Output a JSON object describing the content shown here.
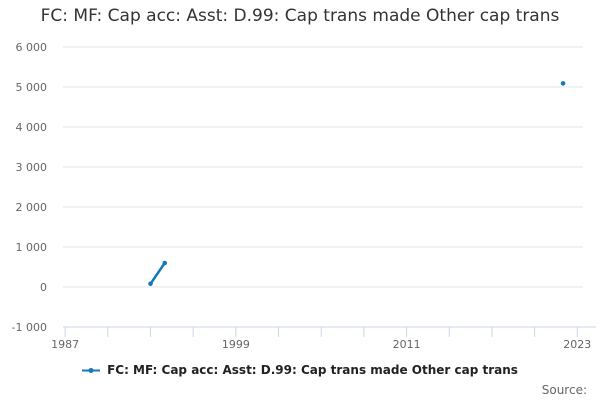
{
  "title": "FC: MF: Cap acc: Asst: D.99: Cap trans made Other cap trans",
  "legend": {
    "label": "FC: MF: Cap acc: Asst: D.99: Cap trans made Other cap trans"
  },
  "footer": {
    "source_label": "Source:"
  },
  "colors": {
    "series": "#1379be",
    "grid": "#e6e6e6",
    "axis": "#ccd6eb",
    "tick_label": "#666666",
    "title": "#333333",
    "legend_text": "#222222",
    "source_text": "#666666"
  },
  "chart_data": {
    "type": "line",
    "title": "FC: MF: Cap acc: Asst: D.99: Cap trans made Other cap trans",
    "xlabel": "",
    "ylabel": "",
    "xlim": [
      1986.85,
      2023.4
    ],
    "ylim": [
      -1000,
      6000
    ],
    "grid": "horizontal",
    "legend_position": "bottom-center",
    "x_ticks": [
      1987,
      1990,
      1993,
      1996,
      1999,
      2002,
      2005,
      2008,
      2011,
      2014,
      2017,
      2020,
      2023
    ],
    "x_tick_labels": [
      "1987",
      "1999",
      "2011",
      "2023"
    ],
    "y_ticks": [
      -1000,
      0,
      1000,
      2000,
      3000,
      4000,
      5000,
      6000
    ],
    "y_tick_labels": [
      "-1 000",
      "0",
      "1 000",
      "2 000",
      "3 000",
      "4 000",
      "5 000",
      "6 000"
    ],
    "series": [
      {
        "name": "FC: MF: Cap acc: Asst: D.99: Cap trans made Other cap trans",
        "color": "#1379be",
        "points": [
          {
            "x": 1993,
            "y": 80
          },
          {
            "x": 1994,
            "y": 600
          },
          {
            "x": 2022,
            "y": 5090
          }
        ]
      }
    ]
  }
}
